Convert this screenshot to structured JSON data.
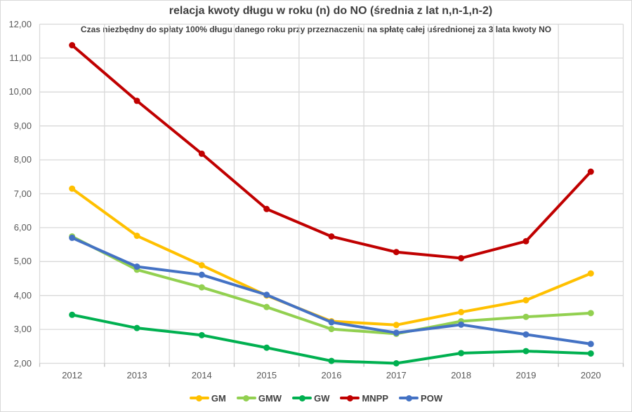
{
  "chart": {
    "title": "relacja kwoty długu w roku (n) do NO (średnia z lat n,n-1,n-2)",
    "subtitle": "Czas niezbędny do spłaty 100% długu danego roku przy przeznaczeniu na spłatę całej uśrednionej za 3 lata kwoty NO"
  },
  "chart_data": {
    "type": "line",
    "title": "relacja kwoty długu w roku (n) do NO (średnia z lat n,n-1,n-2)",
    "subtitle": "Czas niezbędny do spłaty 100% długu danego roku przy przeznaczeniu na spłatę całej uśrednionej za 3 lata kwoty NO",
    "categories": [
      "2012",
      "2013",
      "2014",
      "2015",
      "2016",
      "2017",
      "2018",
      "2019",
      "2020"
    ],
    "series": [
      {
        "name": "GM",
        "color": "#FFC000",
        "values": [
          7.15,
          5.76,
          4.89,
          4.0,
          3.24,
          3.13,
          3.51,
          3.86,
          4.65
        ]
      },
      {
        "name": "GMW",
        "color": "#92D050",
        "values": [
          5.74,
          4.76,
          4.24,
          3.66,
          3.01,
          2.87,
          3.24,
          3.37,
          3.48
        ]
      },
      {
        "name": "GW",
        "color": "#00B050",
        "values": [
          3.43,
          3.04,
          2.83,
          2.46,
          2.07,
          2.0,
          2.3,
          2.36,
          2.29
        ]
      },
      {
        "name": "MNPP",
        "color": "#C00000",
        "values": [
          11.38,
          9.74,
          8.18,
          6.55,
          5.74,
          5.28,
          5.1,
          5.6,
          7.65
        ]
      },
      {
        "name": "POW",
        "color": "#4472C4",
        "values": [
          5.7,
          4.85,
          4.61,
          4.02,
          3.21,
          2.9,
          3.14,
          2.85,
          2.57
        ]
      }
    ],
    "ylim": [
      2,
      12
    ],
    "ytick_step": 1,
    "ytick_labels": [
      "12,00",
      "11,00",
      "10,00",
      "9,00",
      "8,00",
      "7,00",
      "6,00",
      "5,00",
      "4,00",
      "3,00",
      "2,00"
    ],
    "xlabel": "",
    "ylabel": "",
    "grid": "horizontal-and-vertical",
    "gridline_color": "#D9D9D9",
    "legend_position": "bottom"
  }
}
